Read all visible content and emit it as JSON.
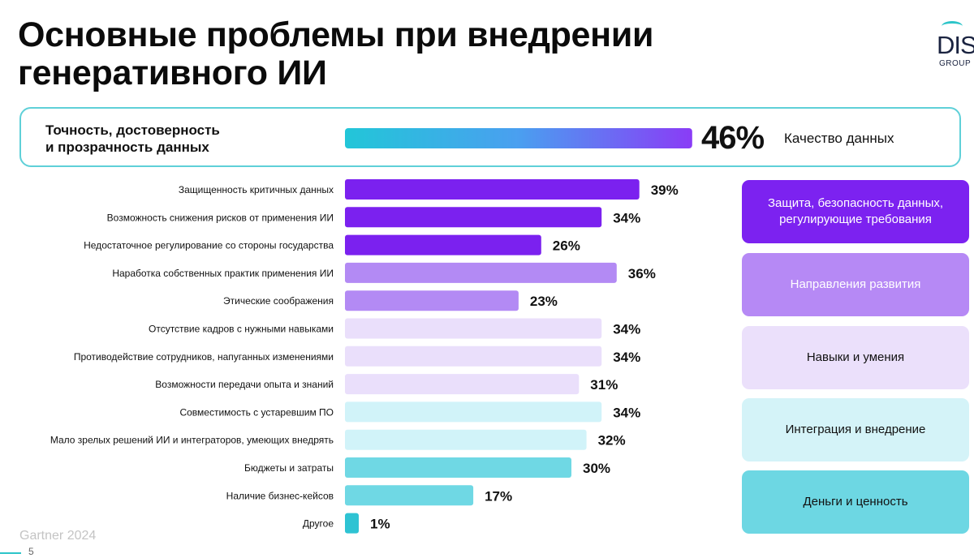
{
  "header": {
    "title_line1": "Основные проблемы при внедрении",
    "title_line2": "генеративного ИИ"
  },
  "logo": {
    "text": "DIS",
    "subtext": "GROUP"
  },
  "highlight": {
    "label_line1": "Точность, достоверность",
    "label_line2": "и прозрачность данных",
    "value_label": "46%",
    "category": "Качество данных"
  },
  "chart_data": {
    "type": "bar",
    "orientation": "horizontal",
    "unit": "%",
    "xlim": [
      0,
      46
    ],
    "highlight": {
      "category": "Точность, достоверность и прозрачность данных",
      "value": 46,
      "group": "Качество данных"
    },
    "categories": [
      "Защищенность критичных данных",
      "Возможность снижения рисков от применения ИИ",
      "Недостаточное регулирование со стороны государства",
      "Наработка собственных практик применения ИИ",
      "Этические соображения",
      "Отсутствие кадров с нужными навыками",
      "Противодействие сотрудников, напуганных изменениями",
      "Возможности передачи опыта и знаний",
      "Совместимость с устаревшим ПО",
      "Мало зрелых решений ИИ и интеграторов, умеющих внедрять",
      "Бюджеты и затраты",
      "Наличие бизнес-кейсов",
      "Другое"
    ],
    "values": [
      39,
      34,
      26,
      36,
      23,
      34,
      34,
      31,
      34,
      32,
      30,
      17,
      1
    ],
    "value_labels": [
      "39%",
      "34%",
      "26%",
      "36%",
      "23%",
      "34%",
      "34%",
      "31%",
      "34%",
      "32%",
      "30%",
      "17%",
      "1%"
    ],
    "groups": [
      {
        "name": "Защита, безопасность данных, регулирующие требования",
        "line1": "Защита, безопасность данных,",
        "line2": "регулирующие требования",
        "items": [
          0,
          1,
          2
        ],
        "color": "#7c22f0",
        "text_color": "#ffffff"
      },
      {
        "name": "Направления развития",
        "line1": "Направления развития",
        "line2": "",
        "items": [
          3,
          4
        ],
        "color": "#b689f5",
        "text_color": "#ffffff"
      },
      {
        "name": "Навыки и умения",
        "line1": "Навыки и умения",
        "line2": "",
        "items": [
          5,
          6,
          7
        ],
        "color": "#ebe0fb",
        "text_color": "#111111"
      },
      {
        "name": "Интеграция и внедрение",
        "line1": "Интеграция и внедрение",
        "line2": "",
        "items": [
          8,
          9
        ],
        "color": "#d4f3f8",
        "text_color": "#111111"
      },
      {
        "name": "Деньги и ценность",
        "line1": "Деньги и ценность",
        "line2": "",
        "items": [
          10,
          11,
          12
        ],
        "color": "#6dd7e3",
        "text_color": "#111111"
      }
    ],
    "bar_colors": [
      "#7b21ef",
      "#7b21ef",
      "#7b21ef",
      "#b38af4",
      "#b38af4",
      "#eadffb",
      "#eadffb",
      "#eadffb",
      "#d1f3f9",
      "#d1f3f9",
      "#6fd8e4",
      "#6fd8e4",
      "#2ec3d3"
    ],
    "highlight_gradient": [
      "#22c6d8",
      "#4a9ff0",
      "#8a3cf6"
    ]
  },
  "footer": {
    "source": "Gartner 2024",
    "page": "5"
  }
}
